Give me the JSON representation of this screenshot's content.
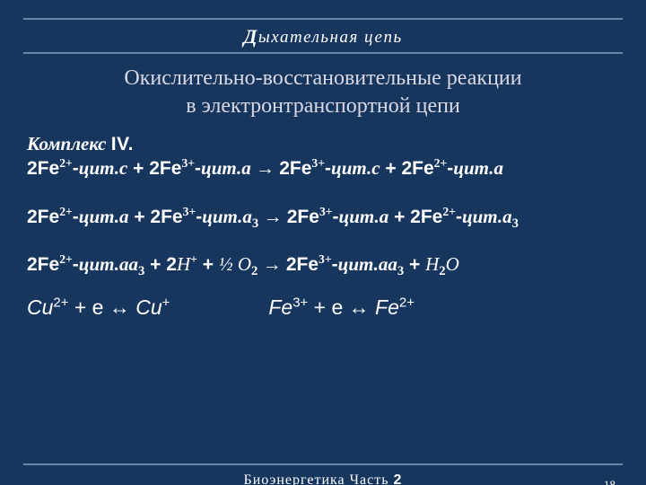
{
  "colors": {
    "background": "#16365d",
    "text": "#ffffff",
    "subtitle": "#d9d9e6",
    "rule": "#6b86a8"
  },
  "header": {
    "cap": "Д",
    "rest": "ыхательная  цепь"
  },
  "subtitle": {
    "line1": "Окислительно-восстановительные реакции",
    "line2": "в электронтранспортной цепи"
  },
  "complex": {
    "label_it": "Комплекс ",
    "roman": "IV."
  },
  "reactions": {
    "r1a": "2Fe",
    "sup2p": "2+",
    "dash": "-",
    "cyt_c": "цит.с",
    "plus": " + ",
    "r1b": "2Fe",
    "sup3p": "3+",
    "cyt_a": "цит.а",
    "arrow": " → ",
    "cyt_a3_a": "цит.а",
    "sub3": "3",
    "cyt_aa3": "цит.аа",
    "twoH": "2",
    "Hplus": "Н",
    "supPlus": "+",
    "half": " ½ ",
    "O": "О",
    "sub2": "2",
    "H2O_H": "Н",
    "H2O_O": "О"
  },
  "final": {
    "cu2": "Cu",
    "cu2sup": "2+",
    "plus_e": " + е ",
    "darr": "↔",
    "cu1": " Cu",
    "cu1sup": "+",
    "fe3": "Fe",
    "fe3sup": "3+",
    "fe2": " Fe",
    "fe2sup": "2+"
  },
  "footer": {
    "text_a": "Биоэнергетика   Часть ",
    "num": "2"
  },
  "page": "18"
}
